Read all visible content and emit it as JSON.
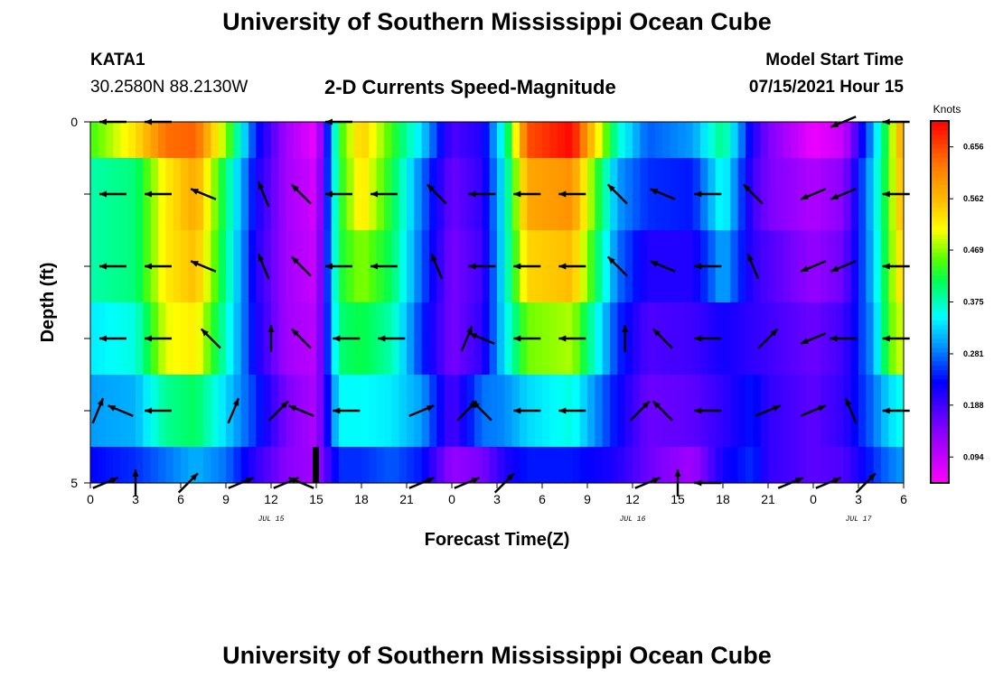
{
  "header": {
    "title": "University of Southern Mississippi Ocean Cube",
    "station": "KATA1",
    "coords": "30.2580N  88.2130W",
    "subtitle": "2-D Currents Speed-Magnitude",
    "model_label": "Model Start Time",
    "model_time": "07/15/2021 Hour 15"
  },
  "footer": {
    "title": "University of Southern Mississippi Ocean Cube"
  },
  "chart_data": {
    "type": "heatmap",
    "title": "2-D Currents Speed-Magnitude",
    "xlabel": "Forecast Time(Z)",
    "ylabel": "Depth (ft)",
    "x_range_hours": [
      0,
      54
    ],
    "x_ticks": [
      "0",
      "3",
      "6",
      "9",
      "12",
      "15",
      "18",
      "21",
      "0",
      "3",
      "6",
      "9",
      "12",
      "15",
      "18",
      "21",
      "0",
      "3",
      "6"
    ],
    "date_labels": [
      {
        "hour": 12,
        "label": "JUL 15"
      },
      {
        "hour": 36,
        "label": "JUL 16"
      },
      {
        "hour": 51,
        "label": "JUL 17"
      }
    ],
    "y_range_ft": [
      0,
      5
    ],
    "y_tick_labels": [
      {
        "depth": 0,
        "label": "0"
      },
      {
        "depth": 5,
        "label": "5"
      }
    ],
    "depth_levels_ft": [
      0,
      1,
      2,
      3,
      4,
      5
    ],
    "colorbar": {
      "label": "Knots",
      "min": 0.047,
      "max": 0.703,
      "ticks": [
        "0.656",
        "0.562",
        "0.469",
        "0.375",
        "0.281",
        "0.188",
        "0.094"
      ]
    },
    "current_marker_hour": 15,
    "keyframes": [
      {
        "h": 0,
        "v": [
          0.44,
          0.38,
          0.38,
          0.34,
          0.3,
          0.23
        ]
      },
      {
        "h": 3,
        "v": [
          0.53,
          0.4,
          0.4,
          0.36,
          0.31,
          0.25
        ]
      },
      {
        "h": 5,
        "v": [
          0.63,
          0.52,
          0.52,
          0.5,
          0.39,
          0.28
        ]
      },
      {
        "h": 7,
        "v": [
          0.64,
          0.58,
          0.56,
          0.52,
          0.41,
          0.31
        ]
      },
      {
        "h": 9,
        "v": [
          0.47,
          0.4,
          0.39,
          0.37,
          0.33,
          0.28
        ]
      },
      {
        "h": 11,
        "v": [
          0.24,
          0.22,
          0.21,
          0.22,
          0.25,
          0.2
        ]
      },
      {
        "h": 13,
        "v": [
          0.12,
          0.12,
          0.12,
          0.12,
          0.15,
          0.14
        ]
      },
      {
        "h": 15,
        "v": [
          0.06,
          0.08,
          0.09,
          0.1,
          0.11,
          0.12
        ]
      },
      {
        "h": 16.5,
        "v": [
          0.43,
          0.42,
          0.42,
          0.4,
          0.35,
          0.25
        ]
      },
      {
        "h": 18,
        "v": [
          0.55,
          0.53,
          0.47,
          0.42,
          0.35,
          0.25
        ]
      },
      {
        "h": 20,
        "v": [
          0.44,
          0.42,
          0.41,
          0.38,
          0.34,
          0.27
        ]
      },
      {
        "h": 22,
        "v": [
          0.33,
          0.28,
          0.27,
          0.25,
          0.3,
          0.24
        ]
      },
      {
        "h": 24,
        "v": [
          0.18,
          0.16,
          0.15,
          0.15,
          0.18,
          0.13
        ]
      },
      {
        "h": 26,
        "v": [
          0.21,
          0.2,
          0.19,
          0.2,
          0.28,
          0.15
        ]
      },
      {
        "h": 27.5,
        "v": [
          0.37,
          0.35,
          0.35,
          0.34,
          0.29,
          0.21
        ]
      },
      {
        "h": 29,
        "v": [
          0.65,
          0.58,
          0.54,
          0.46,
          0.33,
          0.24
        ]
      },
      {
        "h": 32,
        "v": [
          0.7,
          0.6,
          0.56,
          0.48,
          0.36,
          0.24
        ]
      },
      {
        "h": 35,
        "v": [
          0.37,
          0.3,
          0.28,
          0.25,
          0.23,
          0.21
        ]
      },
      {
        "h": 37,
        "v": [
          0.27,
          0.25,
          0.21,
          0.18,
          0.16,
          0.16
        ]
      },
      {
        "h": 40,
        "v": [
          0.3,
          0.24,
          0.21,
          0.19,
          0.17,
          0.12
        ]
      },
      {
        "h": 42,
        "v": [
          0.4,
          0.36,
          0.31,
          0.22,
          0.2,
          0.22
        ]
      },
      {
        "h": 44,
        "v": [
          0.21,
          0.19,
          0.2,
          0.2,
          0.24,
          0.25
        ]
      },
      {
        "h": 45,
        "v": [
          0.15,
          0.15,
          0.18,
          0.19,
          0.2,
          0.2
        ]
      },
      {
        "h": 48,
        "v": [
          0.06,
          0.11,
          0.13,
          0.16,
          0.17,
          0.17
        ]
      },
      {
        "h": 50,
        "v": [
          0.09,
          0.14,
          0.16,
          0.19,
          0.2,
          0.18
        ]
      },
      {
        "h": 52,
        "v": [
          0.31,
          0.33,
          0.32,
          0.3,
          0.28,
          0.25
        ]
      },
      {
        "h": 53,
        "v": [
          0.45,
          0.45,
          0.45,
          0.45,
          0.33,
          0.28
        ]
      },
      {
        "h": 54,
        "v": [
          0.6,
          0.58,
          0.55,
          0.5,
          0.36,
          0.3
        ]
      }
    ],
    "arrows": [
      {
        "depth": 0,
        "vectors": [
          {
            "h": 1.5,
            "dir": "W"
          },
          {
            "h": 4.5,
            "dir": "W"
          },
          {
            "h": 16.5,
            "dir": "W"
          },
          {
            "h": 50,
            "dir": "WSW"
          },
          {
            "h": 53.5,
            "dir": "W"
          }
        ]
      },
      {
        "depth": 1,
        "vectors": [
          {
            "h": 1.5,
            "dir": "W"
          },
          {
            "h": 4.5,
            "dir": "W"
          },
          {
            "h": 7.5,
            "dir": "WNW"
          },
          {
            "h": 11.5,
            "dir": "NNW"
          },
          {
            "h": 14,
            "dir": "NW"
          },
          {
            "h": 16.5,
            "dir": "W"
          },
          {
            "h": 19.5,
            "dir": "W"
          },
          {
            "h": 23,
            "dir": "NW"
          },
          {
            "h": 26,
            "dir": "W"
          },
          {
            "h": 29,
            "dir": "W"
          },
          {
            "h": 32,
            "dir": "W"
          },
          {
            "h": 35,
            "dir": "NW"
          },
          {
            "h": 38,
            "dir": "WNW"
          },
          {
            "h": 41,
            "dir": "W"
          },
          {
            "h": 44,
            "dir": "NW"
          },
          {
            "h": 48,
            "dir": "WSW"
          },
          {
            "h": 50,
            "dir": "WSW"
          },
          {
            "h": 53.5,
            "dir": "W"
          }
        ]
      },
      {
        "depth": 2,
        "vectors": [
          {
            "h": 1.5,
            "dir": "W"
          },
          {
            "h": 4.5,
            "dir": "W"
          },
          {
            "h": 7.5,
            "dir": "WNW"
          },
          {
            "h": 11.5,
            "dir": "NNW"
          },
          {
            "h": 14,
            "dir": "NW"
          },
          {
            "h": 16.5,
            "dir": "W"
          },
          {
            "h": 19.5,
            "dir": "W"
          },
          {
            "h": 23,
            "dir": "NNW"
          },
          {
            "h": 26,
            "dir": "W"
          },
          {
            "h": 29,
            "dir": "W"
          },
          {
            "h": 32,
            "dir": "W"
          },
          {
            "h": 35,
            "dir": "NW"
          },
          {
            "h": 38,
            "dir": "WNW"
          },
          {
            "h": 41,
            "dir": "W"
          },
          {
            "h": 44,
            "dir": "NNW"
          },
          {
            "h": 48,
            "dir": "WSW"
          },
          {
            "h": 50,
            "dir": "WSW"
          },
          {
            "h": 53.5,
            "dir": "W"
          }
        ]
      },
      {
        "depth": 3,
        "vectors": [
          {
            "h": 1.5,
            "dir": "W"
          },
          {
            "h": 4.5,
            "dir": "W"
          },
          {
            "h": 8,
            "dir": "NW"
          },
          {
            "h": 12,
            "dir": "N"
          },
          {
            "h": 14,
            "dir": "NW"
          },
          {
            "h": 17,
            "dir": "W"
          },
          {
            "h": 20,
            "dir": "W"
          },
          {
            "h": 25,
            "dir": "NNE"
          },
          {
            "h": 26,
            "dir": "WNW"
          },
          {
            "h": 29,
            "dir": "W"
          },
          {
            "h": 32,
            "dir": "W"
          },
          {
            "h": 35.5,
            "dir": "N"
          },
          {
            "h": 38,
            "dir": "NW"
          },
          {
            "h": 41,
            "dir": "W"
          },
          {
            "h": 45,
            "dir": "NE"
          },
          {
            "h": 48,
            "dir": "WSW"
          },
          {
            "h": 50,
            "dir": "W"
          },
          {
            "h": 53.5,
            "dir": "W"
          }
        ]
      },
      {
        "depth": 4,
        "vectors": [
          {
            "h": 0.5,
            "dir": "NNE"
          },
          {
            "h": 2,
            "dir": "WNW"
          },
          {
            "h": 4.5,
            "dir": "W"
          },
          {
            "h": 9.5,
            "dir": "NNE"
          },
          {
            "h": 12.5,
            "dir": "NE"
          },
          {
            "h": 14,
            "dir": "WNW"
          },
          {
            "h": 17,
            "dir": "W"
          },
          {
            "h": 22,
            "dir": "ENE"
          },
          {
            "h": 25,
            "dir": "NE"
          },
          {
            "h": 26,
            "dir": "NW"
          },
          {
            "h": 29,
            "dir": "W"
          },
          {
            "h": 32,
            "dir": "W"
          },
          {
            "h": 36.5,
            "dir": "NE"
          },
          {
            "h": 38,
            "dir": "NW"
          },
          {
            "h": 41,
            "dir": "W"
          },
          {
            "h": 45,
            "dir": "ENE"
          },
          {
            "h": 48,
            "dir": "ENE"
          },
          {
            "h": 50.5,
            "dir": "NNW"
          },
          {
            "h": 53.5,
            "dir": "W"
          }
        ]
      },
      {
        "depth": 5,
        "vectors": [
          {
            "h": 1,
            "dir": "ENE"
          },
          {
            "h": 3,
            "dir": "N"
          },
          {
            "h": 6.5,
            "dir": "NE"
          },
          {
            "h": 10,
            "dir": "ENE"
          },
          {
            "h": 13,
            "dir": "ENE"
          },
          {
            "h": 14,
            "dir": "WNW"
          },
          {
            "h": 22,
            "dir": "ENE"
          },
          {
            "h": 25,
            "dir": "ENE"
          },
          {
            "h": 27.5,
            "dir": "NE"
          },
          {
            "h": 37,
            "dir": "ENE"
          },
          {
            "h": 39,
            "dir": "N"
          },
          {
            "h": 41,
            "dir": "W"
          },
          {
            "h": 46.5,
            "dir": "ENE"
          },
          {
            "h": 49,
            "dir": "ENE"
          },
          {
            "h": 51.5,
            "dir": "NE"
          }
        ]
      }
    ]
  }
}
